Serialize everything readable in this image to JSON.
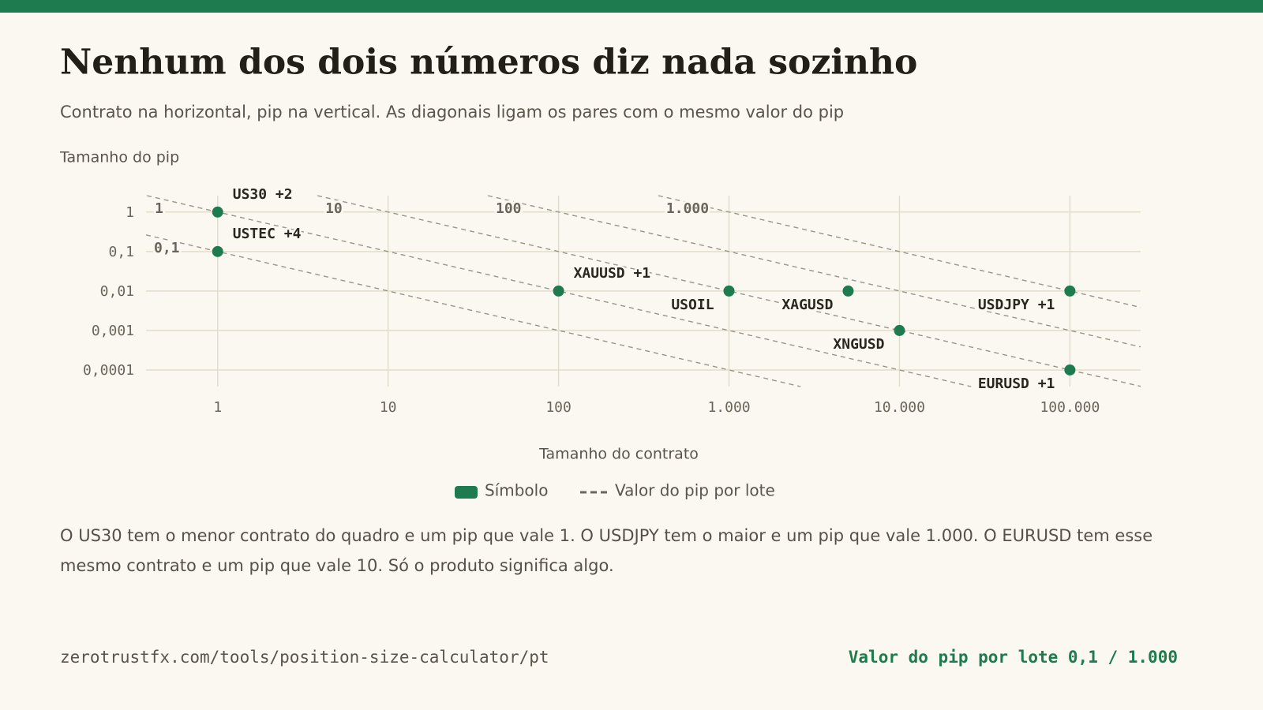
{
  "chart_data": {
    "type": "scatter",
    "title": "Nenhum dos dois números diz nada sozinho",
    "subtitle": "Contrato na horizontal, pip na vertical. As diagonais ligam os pares com o mesmo valor do pip",
    "y_label": "Tamanho do pip",
    "x_label": "Tamanho do contrato",
    "log_x": true,
    "log_y": true,
    "grid": true,
    "xlim": [
      0.38,
      260000
    ],
    "ylim": [
      3.8e-05,
      2.6
    ],
    "xticks": [
      1,
      10,
      100,
      {
        "value": 1000,
        "label": "1.000"
      },
      {
        "value": 10000,
        "label": "10.000"
      },
      {
        "value": 100000,
        "label": "100.000"
      }
    ],
    "yticks": [
      1,
      {
        "value": 0.1,
        "label": "0,1"
      },
      {
        "value": 0.01,
        "label": "0,01"
      },
      {
        "value": 0.001,
        "label": "0,001"
      },
      {
        "value": 0.0001,
        "label": "0,0001"
      }
    ],
    "series": [
      {
        "name": "Símbolo",
        "color": "#1e7b4f",
        "labels": [
          "US30 +2",
          "USTEC +4",
          "XAUUSD +1",
          "USOIL",
          "XAGUSD",
          "XNGUSD",
          "USDJPY +1",
          "EURUSD +1"
        ],
        "x": [
          1,
          1,
          100,
          1000,
          5000,
          10000,
          100000,
          100000
        ],
        "values": [
          1,
          0.1,
          0.01,
          0.01,
          0.01,
          0.001,
          0.01,
          0.0001
        ]
      }
    ],
    "reference_lines": {
      "name": "Valor do pip por lote",
      "color": "#9a948a",
      "values": [
        {
          "value": 0.1,
          "label": "0,1"
        },
        1,
        10,
        100,
        {
          "value": 1000,
          "label": "1.000"
        }
      ]
    },
    "note": "O US30 tem o menor contrato do quadro e um pip que vale 1. O USDJPY tem o maior e um pip que vale 1.000. O EURUSD tem esse mesmo contrato e um pip que vale 10. Só o produto significa algo.",
    "footer_url": "zerotrustfx.com/tools/position-size-calculator/pt",
    "footer_note": "Valor do pip por lote 0,1 / 1.000"
  }
}
